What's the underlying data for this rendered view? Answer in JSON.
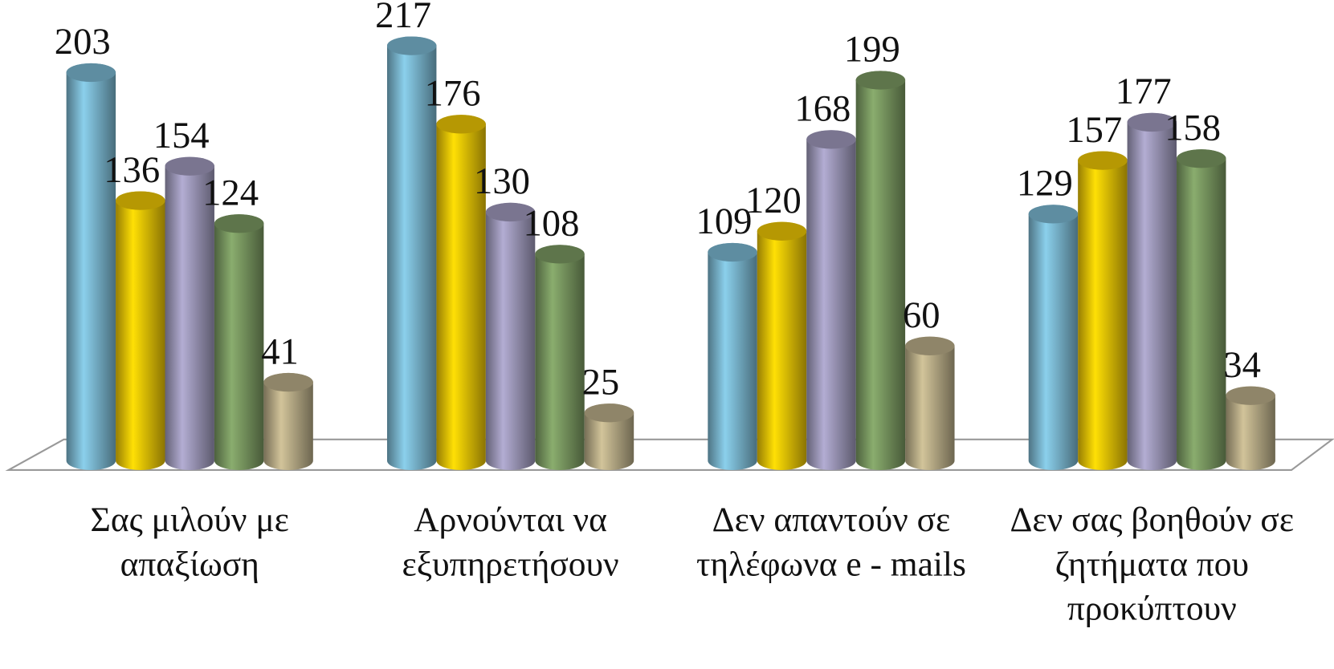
{
  "chart_data": {
    "type": "bar",
    "style": "3d-cylinder",
    "categories": [
      "Σας μιλούν με απαξίωση",
      "Αρνούνται να εξυπηρετήσουν",
      "Δεν απαντούν σε τηλέφωνα e - mails",
      "Δεν σας βοηθούν σε ζητήματα που προκύπτουν"
    ],
    "series": [
      {
        "color": "#6fa6bd",
        "values": [
          203,
          217,
          109,
          129
        ]
      },
      {
        "color": "#d6b304",
        "values": [
          136,
          176,
          120,
          157
        ]
      },
      {
        "color": "#8f8aa9",
        "values": [
          154,
          130,
          168,
          177
        ]
      },
      {
        "color": "#6e8a58",
        "values": [
          124,
          108,
          199,
          158
        ]
      },
      {
        "color": "#a89d7b",
        "values": [
          41,
          25,
          60,
          34
        ]
      }
    ],
    "ylim": [
      0,
      240
    ],
    "grid": false,
    "legend": false
  }
}
